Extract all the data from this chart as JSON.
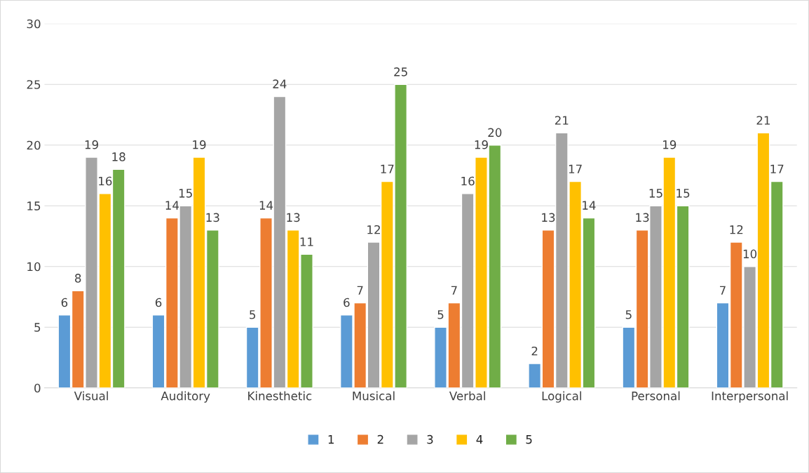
{
  "chart_data": {
    "type": "bar",
    "categories": [
      "Visual",
      "Auditory",
      "Kinesthetic",
      "Musical",
      "Verbal",
      "Logical",
      "Personal",
      "Interpersonal"
    ],
    "series": [
      {
        "name": "1",
        "color": "#5b9bd5",
        "values": [
          6,
          6,
          5,
          6,
          5,
          2,
          5,
          7
        ]
      },
      {
        "name": "2",
        "color": "#ed7d31",
        "values": [
          8,
          14,
          14,
          7,
          7,
          13,
          13,
          12
        ]
      },
      {
        "name": "3",
        "color": "#a5a5a5",
        "values": [
          19,
          15,
          24,
          12,
          16,
          21,
          15,
          10
        ]
      },
      {
        "name": "4",
        "color": "#ffc000",
        "values": [
          16,
          19,
          13,
          17,
          19,
          17,
          19,
          21
        ]
      },
      {
        "name": "5",
        "color": "#70ad47",
        "values": [
          18,
          13,
          11,
          25,
          20,
          14,
          15,
          17
        ]
      }
    ],
    "ylim": [
      0,
      30
    ],
    "yticks": [
      0,
      5,
      10,
      15,
      20,
      25,
      30
    ],
    "grid": "y",
    "legend": "bottom",
    "data_labels": true
  }
}
